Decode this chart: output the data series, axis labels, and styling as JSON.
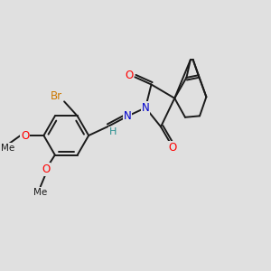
{
  "background_color": "#e0e0e0",
  "bond_color": "#1a1a1a",
  "bond_width": 1.4,
  "atom_colors": {
    "O": "#ff0000",
    "N": "#0000cc",
    "Br": "#cc7700",
    "H": "#2a9090",
    "C": "#1a1a1a"
  },
  "font_size": 8.5,
  "fig_width": 3.0,
  "fig_height": 3.0,
  "dpi": 100,
  "xlim": [
    0,
    10
  ],
  "ylim": [
    0,
    10
  ]
}
